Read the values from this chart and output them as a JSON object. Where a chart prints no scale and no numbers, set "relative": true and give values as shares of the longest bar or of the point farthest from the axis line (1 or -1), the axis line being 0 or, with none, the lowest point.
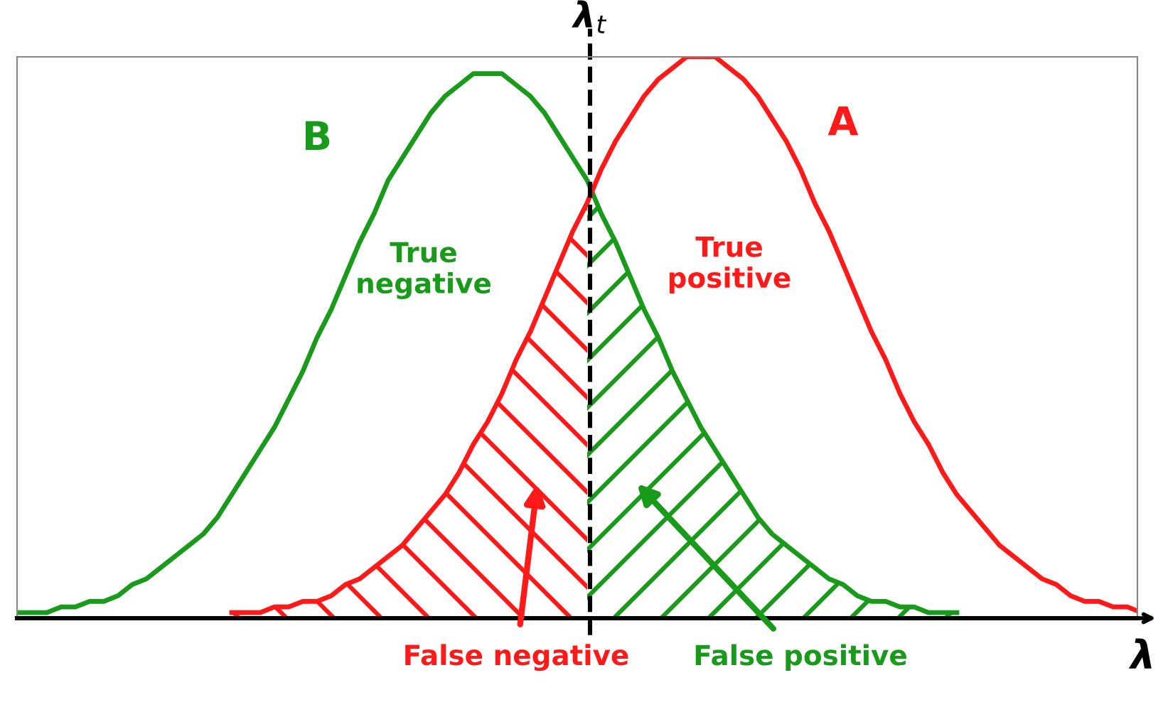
{
  "chart_data": {
    "type": "line",
    "relative": true,
    "xlabel": "λ",
    "legend": false,
    "marker": "none",
    "line_style": "solid",
    "categories": [
      null,
      null,
      null,
      null,
      null,
      null,
      null,
      null,
      null,
      null,
      null,
      null,
      null,
      null,
      null,
      null,
      null,
      null,
      null,
      null,
      null,
      null,
      null,
      null,
      null,
      null,
      null,
      null,
      null,
      null,
      null,
      null,
      null,
      null,
      null,
      null,
      null,
      null,
      null,
      null,
      null,
      null,
      null,
      null,
      null,
      null,
      null,
      null,
      null,
      null,
      null,
      null,
      null,
      null,
      null,
      null,
      null,
      null,
      null,
      null,
      null,
      null,
      null,
      null,
      null,
      null,
      null,
      null,
      null,
      null,
      null,
      null,
      null,
      null,
      null,
      null,
      null,
      null,
      null,
      null
    ],
    "series": [
      {
        "name": "B",
        "color": "#1a9a1a",
        "values": [
          0.01,
          0.01,
          0.01,
          0.02,
          0.02,
          0.03,
          0.03,
          0.04,
          0.06,
          0.07,
          0.09,
          0.11,
          0.13,
          0.15,
          0.18,
          0.22,
          0.26,
          0.3,
          0.34,
          0.39,
          0.44,
          0.5,
          0.55,
          0.61,
          0.67,
          0.72,
          0.78,
          0.82,
          0.86,
          0.9,
          0.93,
          0.95,
          0.97,
          0.97,
          0.97,
          0.95,
          0.93,
          0.9,
          0.86,
          0.82,
          0.78,
          0.72,
          0.67,
          0.61,
          0.55,
          0.5,
          0.44,
          0.39,
          0.34,
          0.3,
          0.26,
          0.22,
          0.18,
          0.15,
          0.13,
          0.11,
          0.09,
          0.07,
          0.06,
          0.04,
          0.03,
          0.03,
          0.02,
          0.02,
          0.01,
          0.01,
          0.01,
          null,
          null,
          null,
          null,
          null,
          null,
          null,
          null,
          null,
          null,
          null,
          null,
          null
        ]
      },
      {
        "name": "A",
        "color": "#ff1a1a",
        "values": [
          null,
          null,
          null,
          null,
          null,
          null,
          null,
          null,
          null,
          null,
          null,
          null,
          null,
          null,
          null,
          0.01,
          0.01,
          0.01,
          0.02,
          0.02,
          0.03,
          0.03,
          0.04,
          0.06,
          0.07,
          0.09,
          0.11,
          0.13,
          0.16,
          0.19,
          0.22,
          0.26,
          0.31,
          0.35,
          0.4,
          0.46,
          0.51,
          0.57,
          0.63,
          0.69,
          0.74,
          0.8,
          0.85,
          0.89,
          0.93,
          0.96,
          0.98,
          1.0,
          1.0,
          1.0,
          0.98,
          0.96,
          0.93,
          0.89,
          0.85,
          0.8,
          0.74,
          0.69,
          0.63,
          0.57,
          0.51,
          0.46,
          0.4,
          0.35,
          0.31,
          0.26,
          0.22,
          0.19,
          0.16,
          0.13,
          0.11,
          0.09,
          0.07,
          0.06,
          0.04,
          0.03,
          0.03,
          0.02,
          0.02,
          0.01
        ]
      }
    ],
    "annotations": [
      "λ$_{t}$",
      "True negative",
      "True positive",
      "False negative",
      "False positive"
    ]
  }
}
